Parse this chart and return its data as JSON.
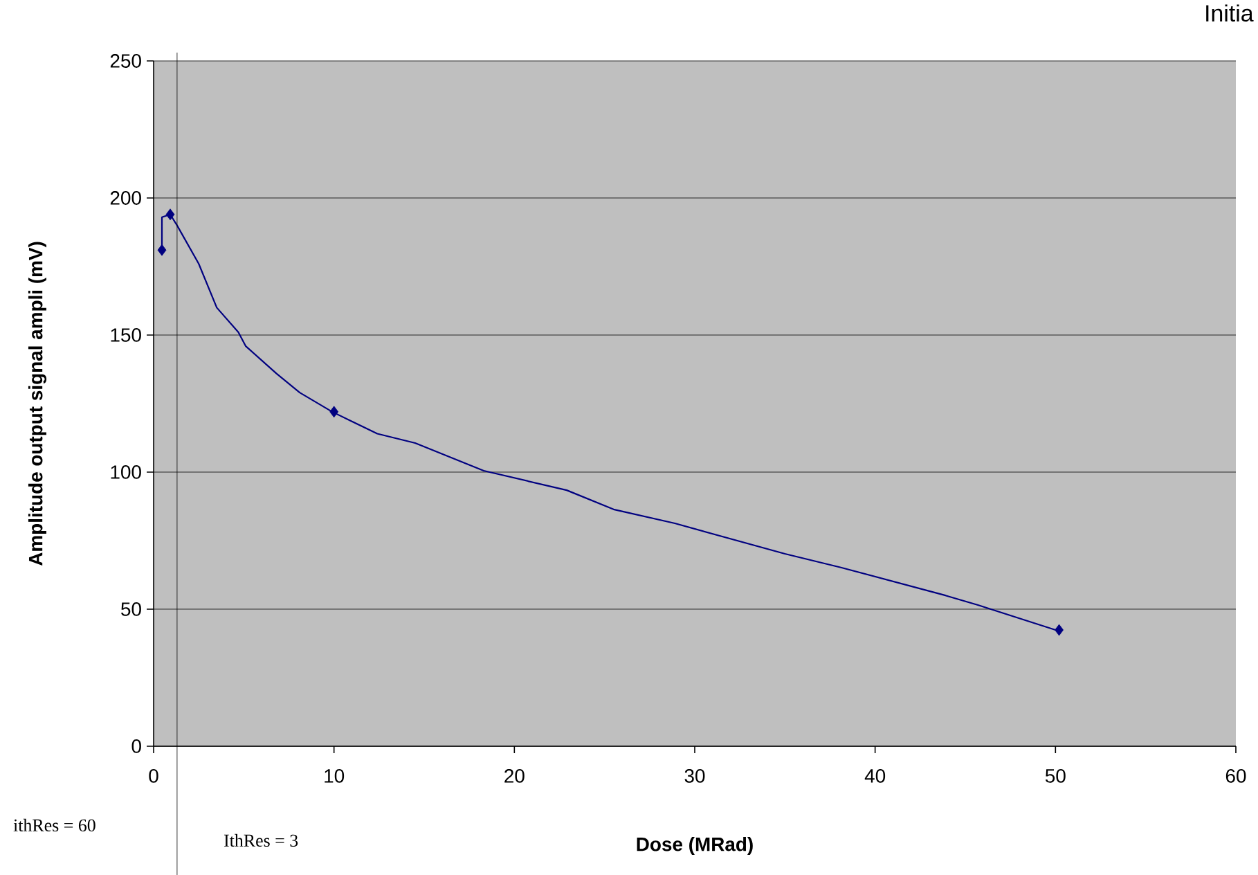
{
  "chart_data": {
    "type": "line",
    "xlabel": "Dose (MRad)",
    "ylabel": "Amplitude output signal ampli (mV)",
    "xlim": [
      0,
      60
    ],
    "xticks": [
      0,
      10,
      20,
      30,
      40,
      50,
      60
    ],
    "ylim": [
      0,
      250
    ],
    "yticks": [
      0,
      50,
      100,
      150,
      200,
      250
    ],
    "grid": "y",
    "series": [
      {
        "color": "#000080",
        "marker": "none",
        "x": [
          0.46,
          0.46,
          0.92,
          1.3,
          2.5,
          3.5,
          4.7,
          5.1,
          6.8,
          8.1,
          9.9,
          12.4,
          14.5,
          18.3,
          22.9,
          25.5,
          28.9,
          35.0,
          38.1,
          43.9,
          45.7,
          50.0
        ],
        "values": [
          181,
          193,
          194,
          190,
          176,
          160,
          151,
          146,
          136,
          129,
          122,
          114,
          110.6,
          100.5,
          93.4,
          86.4,
          81.3,
          70.2,
          65.2,
          55,
          51.5,
          42.4
        ]
      },
      {
        "type": "scatter",
        "color": "#000080",
        "marker": "diamond",
        "x": [
          0.46,
          0.92,
          10,
          50.2
        ],
        "values": [
          181,
          194,
          122,
          42.4
        ]
      }
    ],
    "ref_lines": [
      {
        "axis": "x",
        "value": 1.3,
        "color": "#000000"
      }
    ],
    "annotations": [
      "ithRes = 60",
      "IthRes = 3",
      "Initia"
    ]
  }
}
